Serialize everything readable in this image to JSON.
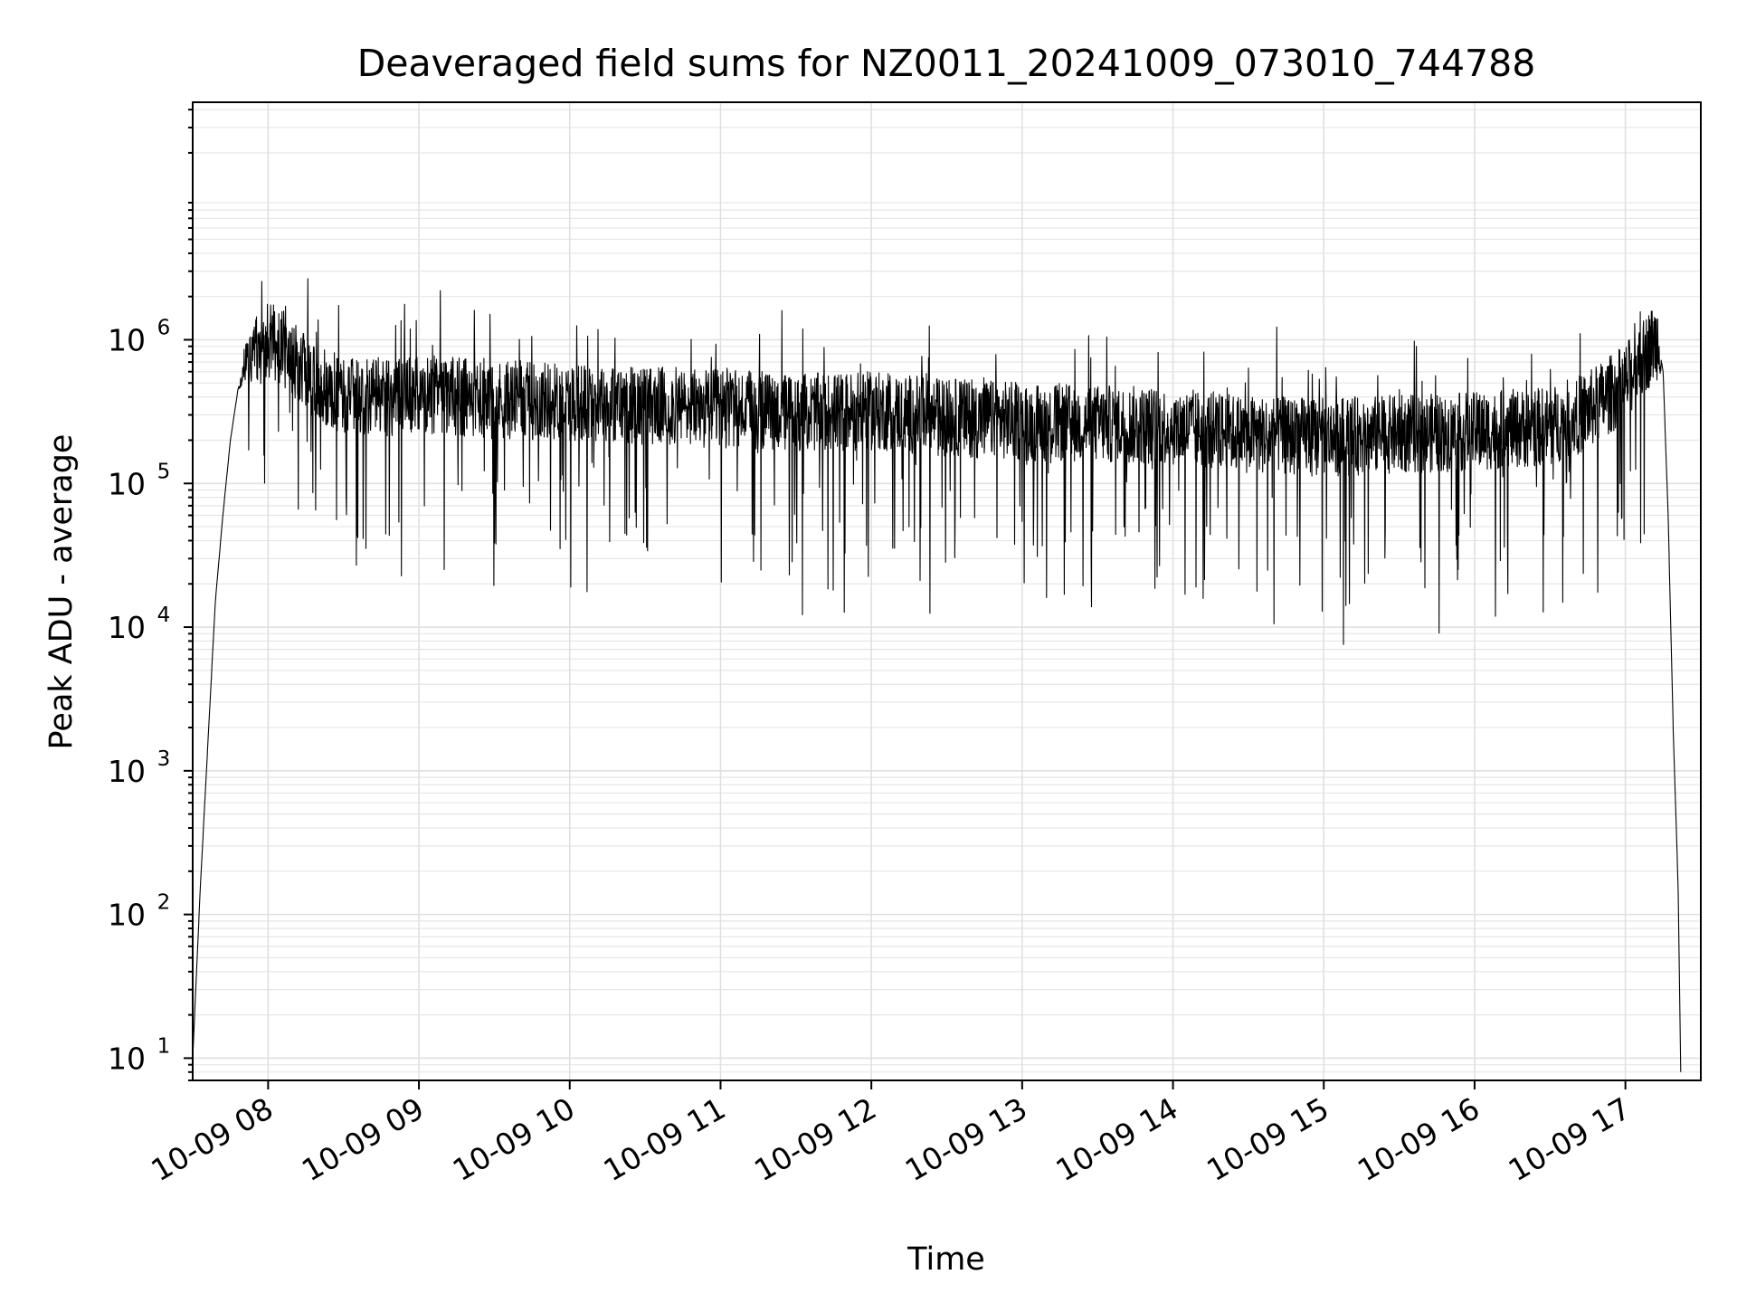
{
  "chart_data": {
    "type": "line",
    "title": "Deaveraged field sums for NZ0011_20241009_073010_744788",
    "xlabel": "Time",
    "ylabel": "Peak ADU - average",
    "yscale": "log",
    "grid": true,
    "grid_minor": true,
    "xlim": [
      "2024-10-09 07:30",
      "2024-10-09 17:30"
    ],
    "ylim": [
      7,
      45000000
    ],
    "x_ticks": [
      {
        "value": "2024-10-09 08:00",
        "label": "10-09 08"
      },
      {
        "value": "2024-10-09 09:00",
        "label": "10-09 09"
      },
      {
        "value": "2024-10-09 10:00",
        "label": "10-09 10"
      },
      {
        "value": "2024-10-09 11:00",
        "label": "10-09 11"
      },
      {
        "value": "2024-10-09 12:00",
        "label": "10-09 12"
      },
      {
        "value": "2024-10-09 13:00",
        "label": "10-09 13"
      },
      {
        "value": "2024-10-09 14:00",
        "label": "10-09 14"
      },
      {
        "value": "2024-10-09 15:00",
        "label": "10-09 15"
      },
      {
        "value": "2024-10-09 16:00",
        "label": "10-09 16"
      },
      {
        "value": "2024-10-09 17:00",
        "label": "10-09 17"
      }
    ],
    "y_ticks": [
      {
        "value": 10,
        "base": "10",
        "exp": "1"
      },
      {
        "value": 100,
        "base": "10",
        "exp": "2"
      },
      {
        "value": 1000,
        "base": "10",
        "exp": "3"
      },
      {
        "value": 10000,
        "base": "10",
        "exp": "4"
      },
      {
        "value": 100000,
        "base": "10",
        "exp": "5"
      },
      {
        "value": 1000000,
        "base": "10",
        "exp": "6"
      }
    ],
    "series": [
      {
        "color": "#000000",
        "x": [
          "2024-10-09 07:30",
          "2024-10-09 07:33",
          "2024-10-09 07:36",
          "2024-10-09 07:39",
          "2024-10-09 07:42",
          "2024-10-09 07:45",
          "2024-10-09 07:48",
          "2024-10-09 07:52",
          "2024-10-09 07:56",
          "2024-10-09 08:00",
          "2024-10-09 08:05",
          "2024-10-09 08:10",
          "2024-10-09 08:20",
          "2024-10-09 08:30",
          "2024-10-09 08:45",
          "2024-10-09 09:00",
          "2024-10-09 09:15",
          "2024-10-09 09:30",
          "2024-10-09 09:45",
          "2024-10-09 10:00",
          "2024-10-09 10:30",
          "2024-10-09 11:00",
          "2024-10-09 11:30",
          "2024-10-09 12:00",
          "2024-10-09 12:30",
          "2024-10-09 13:00",
          "2024-10-09 13:30",
          "2024-10-09 14:00",
          "2024-10-09 14:30",
          "2024-10-09 15:00",
          "2024-10-09 15:30",
          "2024-10-09 16:00",
          "2024-10-09 16:30",
          "2024-10-09 16:45",
          "2024-10-09 17:00",
          "2024-10-09 17:06",
          "2024-10-09 17:10",
          "2024-10-09 17:13",
          "2024-10-09 17:15",
          "2024-10-09 17:17",
          "2024-10-09 17:19",
          "2024-10-09 17:21",
          "2024-10-09 17:22"
        ],
        "values": [
          10,
          150,
          1500,
          15000,
          60000,
          200000,
          450000,
          700000,
          900000,
          1000000,
          900000,
          700000,
          500000,
          400000,
          400000,
          420000,
          400000,
          380000,
          380000,
          370000,
          350000,
          330000,
          310000,
          320000,
          290000,
          270000,
          260000,
          250000,
          220000,
          210000,
          220000,
          230000,
          250000,
          320000,
          500000,
          700000,
          900000,
          1000000,
          600000,
          60000,
          2000,
          150,
          8
        ]
      }
    ]
  }
}
